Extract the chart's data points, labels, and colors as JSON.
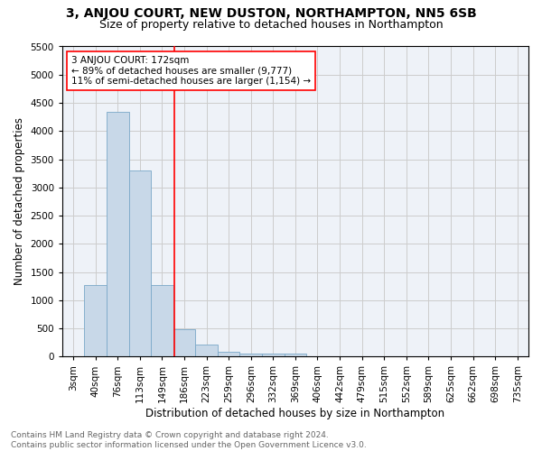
{
  "title1": "3, ANJOU COURT, NEW DUSTON, NORTHAMPTON, NN5 6SB",
  "title2": "Size of property relative to detached houses in Northampton",
  "xlabel": "Distribution of detached houses by size in Northampton",
  "ylabel": "Number of detached properties",
  "bin_labels": [
    "3sqm",
    "40sqm",
    "76sqm",
    "113sqm",
    "149sqm",
    "186sqm",
    "223sqm",
    "259sqm",
    "296sqm",
    "332sqm",
    "369sqm",
    "406sqm",
    "442sqm",
    "479sqm",
    "515sqm",
    "552sqm",
    "589sqm",
    "625sqm",
    "662sqm",
    "698sqm",
    "735sqm"
  ],
  "bar_values": [
    0,
    1270,
    4340,
    3300,
    1270,
    490,
    215,
    90,
    60,
    55,
    55,
    0,
    0,
    0,
    0,
    0,
    0,
    0,
    0,
    0,
    0
  ],
  "bar_color": "#c8d8e8",
  "bar_edge_color": "#7aa8c8",
  "vline_x": 4.55,
  "vline_color": "red",
  "annotation_text": "3 ANJOU COURT: 172sqm\n← 89% of detached houses are smaller (9,777)\n11% of semi-detached houses are larger (1,154) →",
  "annotation_box_color": "white",
  "annotation_box_edge": "red",
  "ylim": [
    0,
    5500
  ],
  "yticks": [
    0,
    500,
    1000,
    1500,
    2000,
    2500,
    3000,
    3500,
    4000,
    4500,
    5000,
    5500
  ],
  "grid_color": "#cccccc",
  "bg_color": "#eef2f8",
  "footer_text": "Contains HM Land Registry data © Crown copyright and database right 2024.\nContains public sector information licensed under the Open Government Licence v3.0.",
  "title1_fontsize": 10,
  "title2_fontsize": 9,
  "xlabel_fontsize": 8.5,
  "ylabel_fontsize": 8.5,
  "tick_fontsize": 7.5,
  "annotation_fontsize": 7.5,
  "footer_fontsize": 6.5
}
